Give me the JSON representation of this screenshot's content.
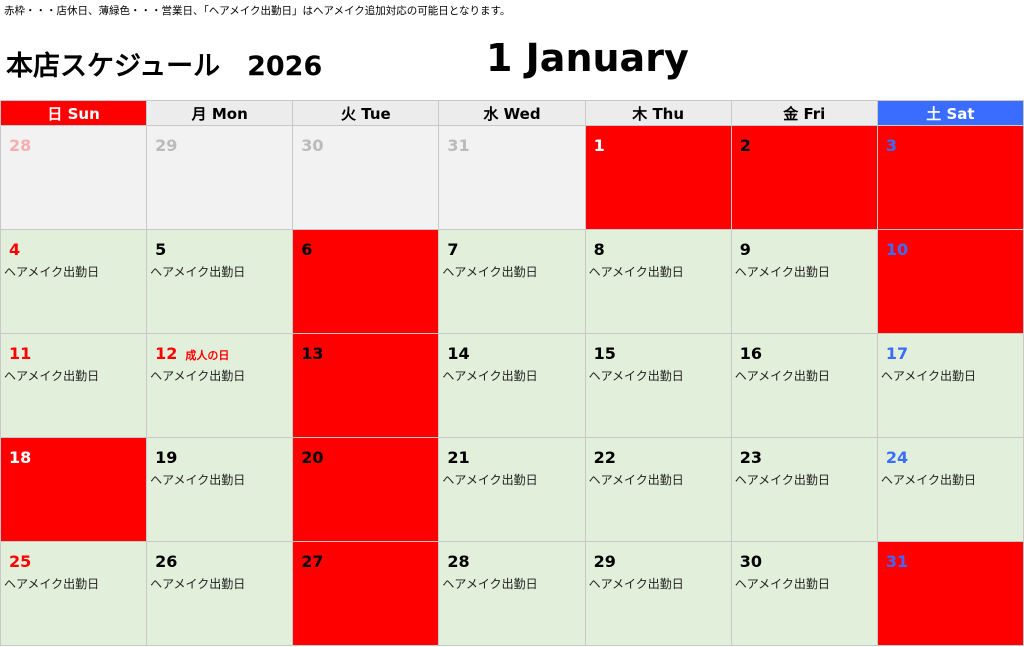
{
  "notice": "赤枠・・・店休日、薄緑色・・・営業日、「ヘアメイク出勤日」はヘアメイク追加対応の可能日となります。",
  "title": "本店スケジュール　2026",
  "month": "1 January",
  "colors": {
    "closed": "#ff0000",
    "open": "#e2efda",
    "prev": "#f2f2f2",
    "sun_header": "#ff0000",
    "sat_header": "#3a6cff"
  },
  "weekdays": [
    {
      "label": "日 Sun",
      "cls": "sun"
    },
    {
      "label": "月 Mon",
      "cls": ""
    },
    {
      "label": "火 Tue",
      "cls": ""
    },
    {
      "label": "水 Wed",
      "cls": ""
    },
    {
      "label": "木 Thu",
      "cls": ""
    },
    {
      "label": "金 Fri",
      "cls": ""
    },
    {
      "label": "土 Sat",
      "cls": "sat"
    }
  ],
  "weeks": [
    [
      {
        "d": "28",
        "t": "prev",
        "c": "#f4b0b0"
      },
      {
        "d": "29",
        "t": "prev",
        "c": "#bbbbbb"
      },
      {
        "d": "30",
        "t": "prev",
        "c": "#bbbbbb"
      },
      {
        "d": "31",
        "t": "prev",
        "c": "#bbbbbb"
      },
      {
        "d": "1",
        "t": "closed",
        "c": "#ffffff"
      },
      {
        "d": "2",
        "t": "closed",
        "c": "#000000"
      },
      {
        "d": "3",
        "t": "closed",
        "c": "#3a6cff"
      }
    ],
    [
      {
        "d": "4",
        "t": "open",
        "c": "#ff0000",
        "note": "ヘアメイク出勤日"
      },
      {
        "d": "5",
        "t": "open",
        "c": "#000000",
        "note": "ヘアメイク出勤日"
      },
      {
        "d": "6",
        "t": "closed",
        "c": "#000000"
      },
      {
        "d": "7",
        "t": "open",
        "c": "#000000",
        "note": "ヘアメイク出勤日"
      },
      {
        "d": "8",
        "t": "open",
        "c": "#000000",
        "note": "ヘアメイク出勤日"
      },
      {
        "d": "9",
        "t": "open",
        "c": "#000000",
        "note": "ヘアメイク出勤日"
      },
      {
        "d": "10",
        "t": "closed",
        "c": "#3a6cff"
      }
    ],
    [
      {
        "d": "11",
        "t": "open",
        "c": "#ff0000",
        "note": "ヘアメイク出勤日"
      },
      {
        "d": "12",
        "t": "open",
        "c": "#ff0000",
        "holiday": "成人の日",
        "note": "ヘアメイク出勤日"
      },
      {
        "d": "13",
        "t": "closed",
        "c": "#000000"
      },
      {
        "d": "14",
        "t": "open",
        "c": "#000000",
        "note": "ヘアメイク出勤日"
      },
      {
        "d": "15",
        "t": "open",
        "c": "#000000",
        "note": "ヘアメイク出勤日"
      },
      {
        "d": "16",
        "t": "open",
        "c": "#000000",
        "note": "ヘアメイク出勤日"
      },
      {
        "d": "17",
        "t": "open",
        "c": "#3a6cff",
        "note": "ヘアメイク出勤日"
      }
    ],
    [
      {
        "d": "18",
        "t": "closed",
        "c": "#ffffff"
      },
      {
        "d": "19",
        "t": "open",
        "c": "#000000",
        "note": "ヘアメイク出勤日"
      },
      {
        "d": "20",
        "t": "closed",
        "c": "#000000"
      },
      {
        "d": "21",
        "t": "open",
        "c": "#000000",
        "note": "ヘアメイク出勤日"
      },
      {
        "d": "22",
        "t": "open",
        "c": "#000000",
        "note": "ヘアメイク出勤日"
      },
      {
        "d": "23",
        "t": "open",
        "c": "#000000",
        "note": "ヘアメイク出勤日"
      },
      {
        "d": "24",
        "t": "open",
        "c": "#3a6cff",
        "note": "ヘアメイク出勤日"
      }
    ],
    [
      {
        "d": "25",
        "t": "open",
        "c": "#ff0000",
        "note": "ヘアメイク出勤日"
      },
      {
        "d": "26",
        "t": "open",
        "c": "#000000",
        "note": "ヘアメイク出勤日"
      },
      {
        "d": "27",
        "t": "closed",
        "c": "#000000"
      },
      {
        "d": "28",
        "t": "open",
        "c": "#000000",
        "note": "ヘアメイク出勤日"
      },
      {
        "d": "29",
        "t": "open",
        "c": "#000000",
        "note": "ヘアメイク出勤日"
      },
      {
        "d": "30",
        "t": "open",
        "c": "#000000",
        "note": "ヘアメイク出勤日"
      },
      {
        "d": "31",
        "t": "closed",
        "c": "#4466ff"
      }
    ]
  ]
}
